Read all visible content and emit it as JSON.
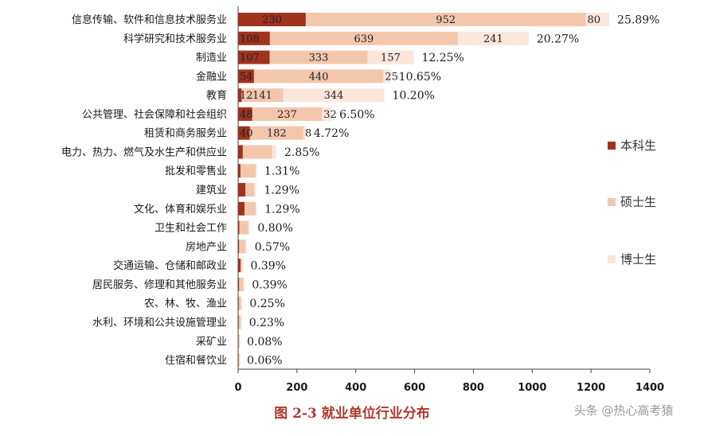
{
  "chart_data": {
    "type": "bar",
    "orientation": "horizontal",
    "stacked": true,
    "caption": "图 2-3  就业单位行业分布",
    "xlim": [
      0,
      1400
    ],
    "xticks": [
      0,
      200,
      400,
      600,
      800,
      1000,
      1200,
      1400
    ],
    "grid": false,
    "legend_position": "right",
    "categories": [
      "信息传输、软件和信息技术服务业",
      "科学研究和技术服务业",
      "制造业",
      "金融业",
      "教育",
      "公共管理、社会保障和社会组织",
      "租赁和商务服务业",
      "电力、热力、燃气及水生产和供应业",
      "批发和零售业",
      "建筑业",
      "文化、体育和娱乐业",
      "卫生和社会工作",
      "房地产业",
      "交通运输、仓储和邮政业",
      "居民服务、修理和其他服务业",
      "农、林、牧、渔业",
      "水利、环境和公共设施管理业",
      "采矿业",
      "住宿和餐饮业"
    ],
    "series": [
      {
        "name": "本科生",
        "color": "#a0321e",
        "values": [
          230,
          108,
          107,
          54,
          12,
          48,
          40,
          16,
          8,
          25,
          22,
          4,
          3,
          8,
          3,
          2,
          2,
          1,
          1
        ],
        "labels": [
          "230",
          "108",
          "107",
          "54",
          "12",
          "48",
          "40",
          "",
          "",
          "",
          "",
          "",
          "",
          "",
          "",
          "",
          "",
          "",
          ""
        ]
      },
      {
        "name": "硕士生",
        "color": "#f4c7ad",
        "values": [
          952,
          639,
          333,
          440,
          141,
          237,
          182,
          100,
          52,
          30,
          38,
          30,
          22,
          6,
          15,
          8,
          7,
          2,
          2
        ],
        "labels": [
          "952",
          "639",
          "333",
          "440",
          "141",
          "237",
          "182",
          "",
          "",
          "",
          "",
          "",
          "",
          "",
          "",
          "",
          "",
          "",
          ""
        ]
      },
      {
        "name": "博士生",
        "color": "#fbe6dc",
        "values": [
          80,
          241,
          157,
          25,
          344,
          32,
          8,
          14,
          2,
          6,
          3,
          5,
          4,
          1,
          2,
          2,
          1,
          0,
          0
        ],
        "labels": [
          "80",
          "241",
          "157",
          "25",
          "344",
          "32",
          "8",
          "",
          "",
          "",
          "",
          "",
          "",
          "",
          "",
          "",
          "",
          "",
          ""
        ]
      }
    ],
    "percentages": [
      "25.89%",
      "20.27%",
      "12.25%",
      "10.65%",
      "10.20%",
      "6.50%",
      "4.72%",
      "2.85%",
      "1.31%",
      "1.29%",
      "1.29%",
      "0.80%",
      "0.57%",
      "0.39%",
      "0.39%",
      "0.25%",
      "0.23%",
      "0.08%",
      "0.06%"
    ]
  },
  "watermark": "头条 @热心高考猿"
}
